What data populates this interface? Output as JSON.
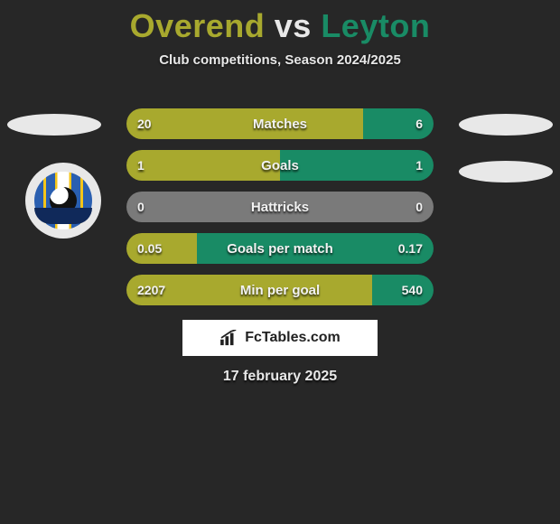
{
  "title": {
    "player1": "Overend",
    "vs": "vs",
    "player2": "Leyton"
  },
  "subtitle": "Club competitions, Season 2024/2025",
  "colors": {
    "player1": "#a8a92e",
    "player2": "#198b65",
    "neutral": "#7a7a7a",
    "background": "#272727",
    "text": "#e8e8e8"
  },
  "bars": [
    {
      "label": "Matches",
      "left_val": "20",
      "right_val": "6",
      "left_pct": 77,
      "right_pct": 23,
      "left_color": "#a8a92e",
      "right_color": "#198b65"
    },
    {
      "label": "Goals",
      "left_val": "1",
      "right_val": "1",
      "left_pct": 50,
      "right_pct": 50,
      "left_color": "#a8a92e",
      "right_color": "#198b65"
    },
    {
      "label": "Hattricks",
      "left_val": "0",
      "right_val": "0",
      "left_pct": 50,
      "right_pct": 50,
      "left_color": "#7a7a7a",
      "right_color": "#7a7a7a"
    },
    {
      "label": "Goals per match",
      "left_val": "0.05",
      "right_val": "0.17",
      "left_pct": 23,
      "right_pct": 77,
      "left_color": "#a8a92e",
      "right_color": "#198b65"
    },
    {
      "label": "Min per goal",
      "left_val": "2207",
      "right_val": "540",
      "left_pct": 80,
      "right_pct": 20,
      "left_color": "#a8a92e",
      "right_color": "#198b65"
    }
  ],
  "logo_text": "FcTables.com",
  "date": "17 february 2025"
}
